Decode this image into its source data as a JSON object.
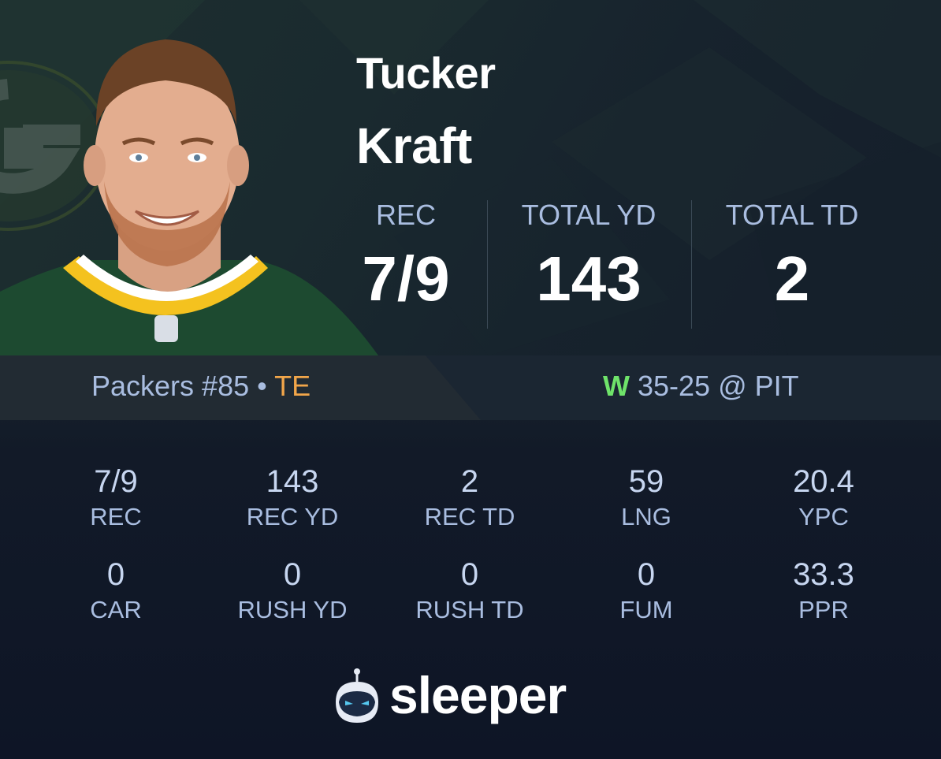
{
  "player": {
    "first_name": "Tucker",
    "last_name": "Kraft",
    "team_number": "Packers #85 • ",
    "position": "TE"
  },
  "game": {
    "result": "W",
    "score": " 35-25 @ PIT"
  },
  "top_stats": [
    {
      "label": "REC",
      "value": "7/9"
    },
    {
      "label": "TOTAL YD",
      "value": "143"
    },
    {
      "label": "TOTAL TD",
      "value": "2"
    }
  ],
  "stats_row1": [
    {
      "value": "7/9",
      "label": "REC"
    },
    {
      "value": "143",
      "label": "REC YD"
    },
    {
      "value": "2",
      "label": "REC TD"
    },
    {
      "value": "59",
      "label": "LNG"
    },
    {
      "value": "20.4",
      "label": "YPC"
    }
  ],
  "stats_row2": [
    {
      "value": "0",
      "label": "CAR"
    },
    {
      "value": "0",
      "label": "RUSH YD"
    },
    {
      "value": "0",
      "label": "RUSH TD"
    },
    {
      "value": "0",
      "label": "FUM"
    },
    {
      "value": "33.3",
      "label": "PPR"
    }
  ],
  "brand": {
    "name": "sleeper"
  },
  "colors": {
    "accent_position": "#f2a64a",
    "win": "#6fe36a",
    "label": "#a9bde0",
    "team_green": "#1f4d2b",
    "team_gold": "#f5c42c"
  },
  "icons": {
    "team_logo": "packers-g-logo-icon",
    "headshot": "player-headshot",
    "brand": "sleeper-mascot-icon"
  }
}
